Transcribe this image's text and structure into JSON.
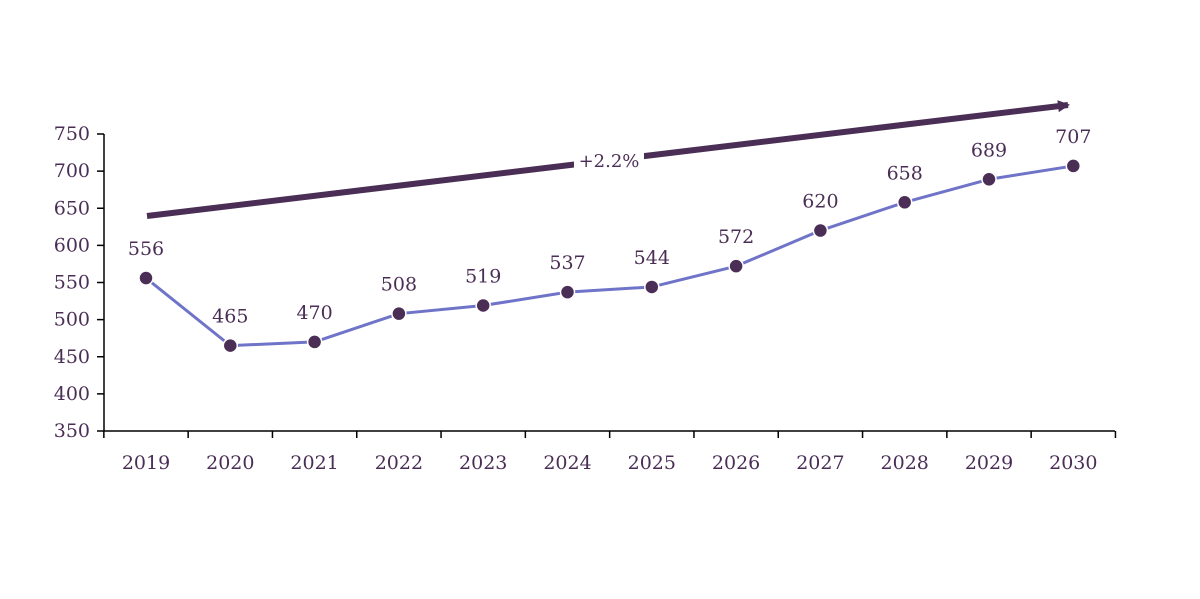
{
  "chart_data": {
    "type": "line",
    "categories": [
      "2019",
      "2020",
      "2021",
      "2022",
      "2023",
      "2024",
      "2025",
      "2026",
      "2027",
      "2028",
      "2029",
      "2030"
    ],
    "series": [
      {
        "values": [
          556,
          465,
          470,
          508,
          519,
          537,
          544,
          572,
          620,
          658,
          689,
          707
        ]
      }
    ],
    "data_labels": [
      "556",
      "465",
      "470",
      "508",
      "519",
      "537",
      "544",
      "572",
      "620",
      "658",
      "689",
      "707"
    ],
    "y_ticks": [
      "350",
      "400",
      "450",
      "500",
      "550",
      "600",
      "650",
      "700",
      "750"
    ],
    "ylim": [
      350,
      750
    ],
    "title": "",
    "xlabel": "",
    "ylabel": "",
    "grid": false,
    "annotation": {
      "text": "+2.2%"
    },
    "colors": {
      "line": "#6f74c8",
      "marker": "#4a2e55",
      "arrow": "#4a2e55",
      "axis": "#000000",
      "text": "#4a2e55"
    }
  }
}
